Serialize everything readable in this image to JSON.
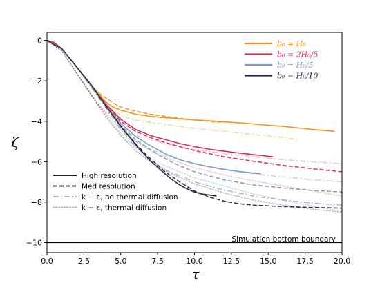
{
  "chart_data": {
    "type": "line",
    "xlabel": "τ",
    "ylabel": "ζ",
    "xlim": [
      0,
      20
    ],
    "ylim": [
      -10.5,
      0.4
    ],
    "xticks": [
      "0.0",
      "2.5",
      "5.0",
      "7.5",
      "10.0",
      "12.5",
      "15.0",
      "17.5",
      "20.0"
    ],
    "yticks": [
      "0",
      "−2",
      "−4",
      "−6",
      "−8",
      "−10"
    ],
    "grid": false,
    "colors": {
      "H0": "#f0961e",
      "2H0_5": "#d8305d",
      "H0_5": "#7f9ec0",
      "H0_10": "#262c45"
    },
    "boundary": {
      "y": -10,
      "label": "Simulation bottom boundary"
    },
    "legend_cases": {
      "placement": "top-right",
      "entries": [
        {
          "label": "b₀ = H₀",
          "color": "#f0961e"
        },
        {
          "label": "b₀ = 2H₀/5",
          "color": "#d8305d"
        },
        {
          "label": "b₀ = H₀/5",
          "color": "#7f9ec0"
        },
        {
          "label": "b₀ = H₀/10",
          "color": "#262c45"
        }
      ]
    },
    "legend_styles": {
      "placement": "lower-left",
      "entries": [
        {
          "label": "High resolution",
          "style": "solid",
          "color": "#000000"
        },
        {
          "label": "Med resolution",
          "style": "dashed",
          "color": "#000000"
        },
        {
          "label": "k − ε, no thermal diffusion",
          "style": "dashdot",
          "color": "#aaaaaa"
        },
        {
          "label": "k − ε, thermal diffusion",
          "style": "dotted",
          "color": "#aaaaaa"
        }
      ]
    },
    "series": [
      {
        "color": "#f0961e",
        "style": "solid",
        "alpha": 1,
        "x": [
          0,
          0.5,
          1,
          1.5,
          2,
          3,
          4,
          4.5,
          5,
          6,
          7,
          8,
          10,
          12,
          14,
          16,
          18,
          19.5
        ],
        "y": [
          0,
          -0.1,
          -0.4,
          -0.85,
          -1.3,
          -2.2,
          -3.05,
          -3.3,
          -3.45,
          -3.65,
          -3.75,
          -3.82,
          -3.93,
          -4.02,
          -4.13,
          -4.25,
          -4.4,
          -4.5
        ]
      },
      {
        "color": "#f0961e",
        "style": "dashed",
        "alpha": 1,
        "x": [
          0,
          0.5,
          1,
          1.5,
          2,
          3,
          3.5,
          4,
          4.5,
          5,
          6,
          7,
          8,
          9,
          10,
          11,
          12
        ],
        "y": [
          0,
          -0.1,
          -0.4,
          -0.85,
          -1.3,
          -2.2,
          -2.6,
          -2.85,
          -3.1,
          -3.3,
          -3.5,
          -3.65,
          -3.75,
          -3.85,
          -3.93,
          -4.0,
          -4.05
        ]
      },
      {
        "color": "#f0961e",
        "style": "dashdot",
        "alpha": 0.4,
        "x": [
          0,
          1,
          2,
          3,
          4,
          5,
          6,
          8,
          10,
          12,
          14,
          16,
          17
        ],
        "y": [
          0,
          -0.4,
          -1.3,
          -2.3,
          -3.2,
          -3.7,
          -3.95,
          -4.15,
          -4.35,
          -4.5,
          -4.65,
          -4.8,
          -4.9
        ]
      },
      {
        "color": "#f0961e",
        "style": "dotted",
        "alpha": 0.4,
        "x": [
          0,
          1,
          2,
          3,
          3.5,
          4,
          4.5,
          5
        ],
        "y": [
          0,
          -0.5,
          -1.6,
          -2.65,
          -3.2,
          -3.55,
          -3.7,
          -3.8
        ]
      },
      {
        "color": "#d8305d",
        "style": "solid",
        "alpha": 1,
        "x": [
          0,
          0.5,
          1,
          1.5,
          2,
          3,
          4,
          5,
          6,
          7,
          8,
          9,
          10,
          11,
          12,
          13,
          14,
          15.3
        ],
        "y": [
          0,
          -0.1,
          -0.4,
          -0.85,
          -1.3,
          -2.25,
          -3.15,
          -3.9,
          -4.4,
          -4.7,
          -4.9,
          -5.1,
          -5.25,
          -5.38,
          -5.48,
          -5.57,
          -5.65,
          -5.75
        ]
      },
      {
        "color": "#d8305d",
        "style": "dashed",
        "alpha": 1,
        "x": [
          0,
          1,
          2,
          3,
          4,
          5,
          6,
          7,
          8,
          9,
          10,
          12,
          14,
          16,
          18,
          20
        ],
        "y": [
          0,
          -0.4,
          -1.3,
          -2.25,
          -3.2,
          -4.0,
          -4.5,
          -4.8,
          -5.05,
          -5.25,
          -5.45,
          -5.75,
          -5.98,
          -6.18,
          -6.35,
          -6.5
        ]
      },
      {
        "color": "#d8305d",
        "style": "dashdot",
        "alpha": 0.3,
        "x": [
          0,
          1,
          2,
          3,
          4,
          5,
          6,
          8,
          10,
          12,
          14,
          16,
          18,
          20
        ],
        "y": [
          0,
          -0.4,
          -1.3,
          -2.3,
          -3.3,
          -4.2,
          -4.7,
          -5.1,
          -5.4,
          -5.6,
          -5.75,
          -5.9,
          -6.0,
          -6.1
        ]
      },
      {
        "color": "#d8305d",
        "style": "dotted",
        "alpha": 0.3,
        "x": [
          0,
          1,
          2,
          3,
          4,
          5,
          6,
          7,
          8,
          10,
          12,
          14,
          16,
          18,
          20
        ],
        "y": [
          0,
          -0.5,
          -1.6,
          -2.7,
          -3.6,
          -4.4,
          -5.0,
          -5.45,
          -5.8,
          -6.3,
          -6.65,
          -6.95,
          -7.2,
          -7.45,
          -7.7
        ]
      },
      {
        "color": "#7f9ec0",
        "style": "solid",
        "alpha": 1,
        "x": [
          0,
          1,
          2,
          3,
          4,
          5,
          6,
          7,
          8,
          9,
          10,
          11,
          12,
          13,
          14.5
        ],
        "y": [
          0,
          -0.4,
          -1.3,
          -2.25,
          -3.25,
          -4.1,
          -4.75,
          -5.2,
          -5.6,
          -5.9,
          -6.1,
          -6.25,
          -6.38,
          -6.48,
          -6.6
        ]
      },
      {
        "color": "#7f9ec0",
        "style": "dashed",
        "alpha": 1,
        "x": [
          0,
          1,
          2,
          3,
          4,
          5,
          6,
          7,
          8,
          9,
          10,
          12,
          14,
          16,
          18,
          20
        ],
        "y": [
          0,
          -0.4,
          -1.3,
          -2.25,
          -3.25,
          -4.2,
          -4.9,
          -5.4,
          -5.85,
          -6.2,
          -6.5,
          -6.9,
          -7.15,
          -7.3,
          -7.42,
          -7.5
        ]
      },
      {
        "color": "#7f9ec0",
        "style": "dashdot",
        "alpha": 0.45,
        "x": [
          0,
          1,
          2,
          3,
          4,
          5,
          6,
          8,
          10,
          12,
          14,
          16,
          18,
          20
        ],
        "y": [
          0,
          -0.4,
          -1.3,
          -2.3,
          -3.3,
          -4.3,
          -5.0,
          -5.7,
          -6.1,
          -6.4,
          -6.6,
          -6.75,
          -6.9,
          -7.0
        ]
      },
      {
        "color": "#7f9ec0",
        "style": "dotted",
        "alpha": 0.45,
        "x": [
          0,
          1,
          2,
          3,
          4,
          5,
          6,
          7,
          8,
          10,
          12,
          14,
          16,
          18,
          20
        ],
        "y": [
          0,
          -0.5,
          -1.6,
          -2.7,
          -3.7,
          -4.6,
          -5.3,
          -5.8,
          -6.2,
          -6.8,
          -7.2,
          -7.6,
          -7.9,
          -8.2,
          -8.45
        ]
      },
      {
        "color": "#262c45",
        "style": "solid",
        "alpha": 1,
        "x": [
          0,
          1,
          2,
          3,
          4,
          5,
          6,
          7,
          8,
          8.5,
          9,
          9.5,
          10,
          10.5,
          11,
          11.5
        ],
        "y": [
          0,
          -0.4,
          -1.3,
          -2.2,
          -3.25,
          -4.25,
          -5.15,
          -5.95,
          -6.6,
          -6.9,
          -7.15,
          -7.35,
          -7.5,
          -7.6,
          -7.65,
          -7.7
        ]
      },
      {
        "color": "#262c45",
        "style": "dashed",
        "alpha": 1,
        "x": [
          0,
          1,
          2,
          3,
          4,
          5,
          6,
          7,
          8,
          9,
          10,
          11,
          12,
          13,
          14,
          16,
          18,
          20
        ],
        "y": [
          0,
          -0.4,
          -1.3,
          -2.2,
          -3.2,
          -4.25,
          -5.1,
          -5.85,
          -6.5,
          -7.0,
          -7.45,
          -7.75,
          -7.95,
          -8.08,
          -8.15,
          -8.22,
          -8.27,
          -8.3
        ]
      },
      {
        "color": "#262c45",
        "style": "dashdot",
        "alpha": 0.35,
        "x": [
          0,
          1,
          2,
          3,
          4,
          5,
          6,
          7,
          8,
          10,
          12,
          14,
          16,
          18,
          20
        ],
        "y": [
          0,
          -0.4,
          -1.3,
          -2.3,
          -3.35,
          -4.4,
          -5.25,
          -5.9,
          -6.4,
          -7.0,
          -7.4,
          -7.7,
          -7.9,
          -8.05,
          -8.15
        ]
      },
      {
        "color": "#262c45",
        "style": "dotted",
        "alpha": 0.35,
        "x": [
          0,
          1,
          2,
          3,
          4,
          5,
          6,
          7,
          8,
          10,
          12,
          14,
          16,
          18,
          20
        ],
        "y": [
          0,
          -0.5,
          -1.6,
          -2.7,
          -3.8,
          -4.7,
          -5.45,
          -6.0,
          -6.45,
          -7.1,
          -7.55,
          -7.9,
          -8.15,
          -8.35,
          -8.5
        ]
      }
    ]
  }
}
